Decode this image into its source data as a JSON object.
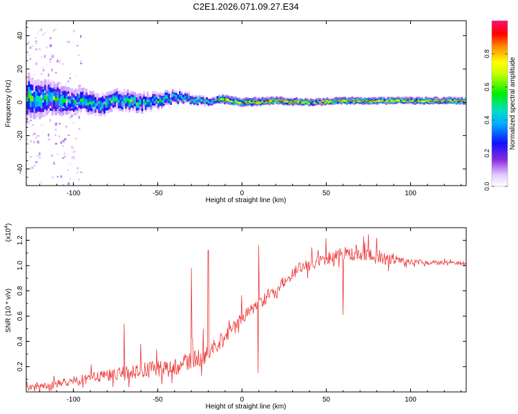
{
  "title": "C2E1.2026.071.09.27.E34",
  "chart_data": [
    {
      "type": "heatmap",
      "xlabel": "Height of straight line (km)",
      "ylabel": "Frequency (Hz)",
      "xlim": [
        -128,
        133
      ],
      "ylim": [
        -50,
        49
      ],
      "xticks": [
        -100,
        -50,
        0,
        50,
        100
      ],
      "yticks": [
        -40,
        -20,
        0,
        20,
        40
      ],
      "xtick_labels": [
        "-100",
        "-50",
        "0",
        "50",
        "100"
      ],
      "ytick_labels": [
        "-40",
        "-20",
        "0",
        "20",
        "40"
      ],
      "ridge": {
        "x": [
          -128,
          -110,
          -95,
          -85,
          -75,
          -60,
          -50,
          -40,
          -30,
          -20,
          -14,
          -6,
          0,
          20,
          40,
          60,
          80,
          100,
          120,
          133
        ],
        "y": [
          3,
          2,
          1,
          -2,
          2,
          0,
          1,
          3,
          2,
          0,
          2,
          1,
          0,
          1,
          0,
          1,
          1,
          1,
          1,
          1
        ]
      },
      "spread_hz": {
        "x": [
          -128,
          -100,
          -80,
          -60,
          -40,
          -20,
          0,
          40,
          80,
          133
        ],
        "y": [
          10,
          6,
          5,
          4.5,
          3,
          2,
          2,
          1.6,
          1.6,
          1.6
        ]
      },
      "colorbar": {
        "label": "Normalized spectral amplitude",
        "range": [
          0,
          1
        ],
        "ticks": [
          0.0,
          0.2,
          0.4,
          0.6,
          0.8
        ],
        "tick_labels": [
          "0.0",
          "0.2",
          "0.4",
          "0.6",
          "0.8"
        ]
      }
    },
    {
      "type": "line",
      "xlabel": "Height of straight line (km)",
      "ylabel": "SNR (10 * v/v)",
      "multiplier": "(x10",
      "multiplier_exp": "4",
      "multiplier_close": ")",
      "xlim": [
        -128,
        133
      ],
      "ylim": [
        0,
        1.3
      ],
      "xticks": [
        -100,
        -50,
        0,
        50,
        100
      ],
      "yticks": [
        0.2,
        0.4,
        0.6,
        0.8,
        1.0,
        1.2
      ],
      "xtick_labels": [
        "-100",
        "-50",
        "0",
        "50",
        "100"
      ],
      "ytick_labels": [
        "0.2",
        "0.4",
        "0.6",
        "0.8",
        "1.0",
        "1.2"
      ],
      "series": [
        {
          "name": "SNR",
          "color": "#ee3333",
          "trend_x": [
            -128,
            -110,
            -100,
            -80,
            -60,
            -40,
            -30,
            -20,
            -10,
            0,
            10,
            20,
            30,
            35,
            50,
            60,
            70,
            80,
            100,
            120,
            133
          ],
          "trend_y": [
            0.03,
            0.06,
            0.09,
            0.13,
            0.17,
            0.2,
            0.25,
            0.3,
            0.45,
            0.6,
            0.7,
            0.8,
            0.95,
            0.99,
            1.05,
            1.09,
            1.08,
            1.06,
            1.03,
            1.02,
            1.02
          ],
          "noise_x": [
            -128,
            -60,
            -40,
            -20,
            0,
            20,
            35,
            60,
            85,
            100,
            133
          ],
          "noise_y": [
            0.02,
            0.06,
            0.07,
            0.07,
            0.06,
            0.05,
            0.04,
            0.06,
            0.05,
            0.02,
            0.015
          ],
          "spike_x": [
            -70,
            -60,
            -30,
            -23,
            -20,
            10,
            9.5,
            60,
            80
          ],
          "spike_y": [
            0.54,
            0.38,
            0.98,
            0.5,
            1.12,
            1.16,
            0.15,
            0.61,
            1.22
          ]
        }
      ]
    }
  ]
}
